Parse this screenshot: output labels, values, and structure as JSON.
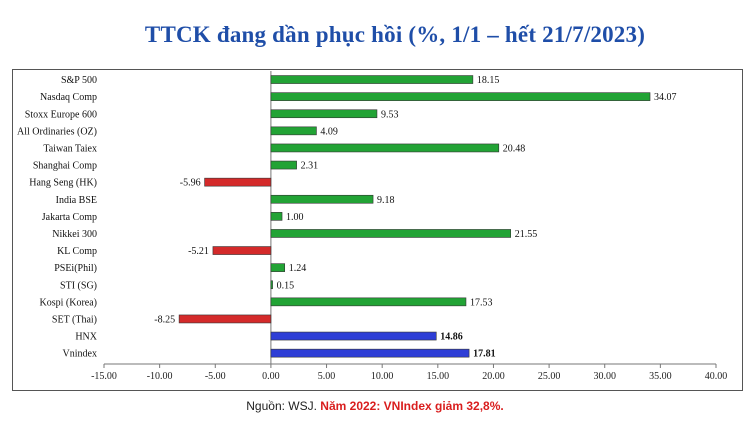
{
  "title": "TTCK đang dần phục hồi (%, 1/1 – hết 21/7/2023)",
  "source": {
    "prefix": "Nguồn: WSJ. ",
    "highlight": "Năm 2022: VNIndex giảm 32,8%."
  },
  "colors": {
    "positive": "#22a335",
    "negative": "#d42a2a",
    "vietnam": "#2e3ed6",
    "title": "#1f4ea8"
  },
  "chart_data": {
    "type": "bar",
    "orientation": "horizontal",
    "categories": [
      "S&P 500",
      "Nasdaq Comp",
      "Stoxx Europe 600",
      "All Ordinaries (OZ)",
      "Taiwan Taiex",
      "Shanghai Comp",
      "Hang Seng (HK)",
      "India BSE",
      "Jakarta Comp",
      "Nikkei 300",
      "KL Comp",
      "PSEi(Phil)",
      "STI (SG)",
      "Kospi (Korea)",
      "SET (Thai)",
      "HNX",
      "Vnindex"
    ],
    "values": [
      18.15,
      34.07,
      9.53,
      4.09,
      20.48,
      2.31,
      -5.96,
      9.18,
      1.0,
      21.55,
      -5.21,
      1.24,
      0.15,
      17.53,
      -8.25,
      14.86,
      17.81
    ],
    "value_labels": [
      "18.15",
      "34.07",
      "9.53",
      "4.09",
      "20.48",
      "2.31",
      "-5.96",
      "9.18",
      "1.00",
      "21.55",
      "-5.21",
      "1.24",
      "0.15",
      "17.53",
      "-8.25",
      "14.86",
      "17.81"
    ],
    "highlighted": [
      "HNX",
      "Vnindex"
    ],
    "xlim": [
      -15,
      40
    ],
    "xticks": [
      "-15.00",
      "-10.00",
      "-5.00",
      "0.00",
      "5.00",
      "10.00",
      "15.00",
      "20.00",
      "25.00",
      "30.00",
      "35.00",
      "40.00"
    ],
    "grid": false,
    "title": "TTCK đang dần phục hồi (%, 1/1 – hết 21/7/2023)",
    "xlabel": "",
    "ylabel": ""
  }
}
